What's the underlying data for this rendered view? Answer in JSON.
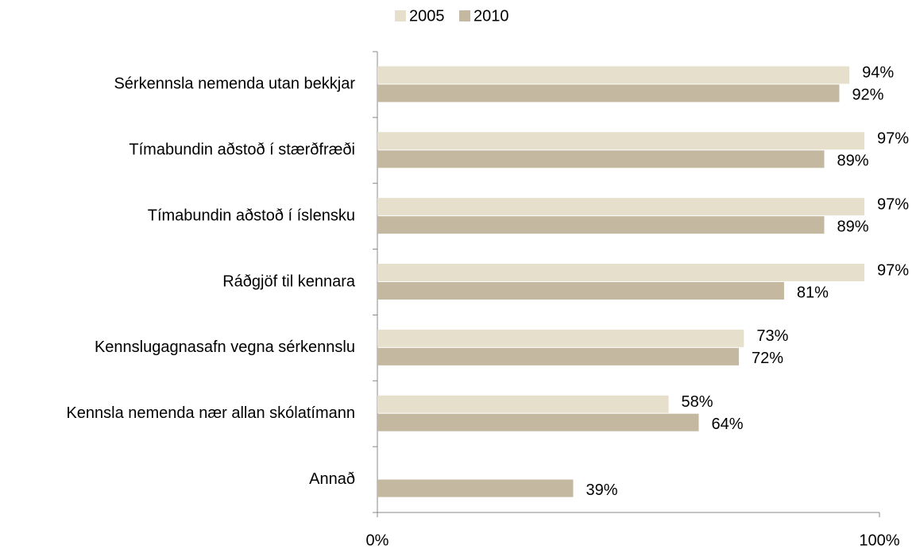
{
  "chart_data": {
    "type": "bar",
    "orientation": "horizontal",
    "categories": [
      "Sérkennsla nemenda utan bekkjar",
      "Tímabundin aðstoð í stærðfræði",
      "Tímabundin aðstoð í íslensku",
      "Ráðgjöf til kennara",
      "Kennslugagnasafn vegna sérkennslu",
      "Kennsla nemenda nær allan skólatímann",
      "Annað"
    ],
    "series": [
      {
        "name": "2005",
        "color": "#e6dfcc",
        "values": [
          94,
          97,
          97,
          97,
          73,
          58,
          null
        ],
        "value_labels": [
          "94%",
          "97%",
          "97%",
          "97%",
          "73%",
          "58%",
          null
        ]
      },
      {
        "name": "2010",
        "color": "#c4b9a0",
        "values": [
          92,
          89,
          89,
          81,
          72,
          64,
          39
        ],
        "value_labels": [
          "92%",
          "89%",
          "89%",
          "81%",
          "72%",
          "64%",
          "39%"
        ]
      }
    ],
    "xlim": [
      0,
      100
    ],
    "xticks": [
      {
        "value": 0,
        "label": "0%"
      },
      {
        "value": 100,
        "label": "100%"
      }
    ],
    "legend": "top"
  }
}
